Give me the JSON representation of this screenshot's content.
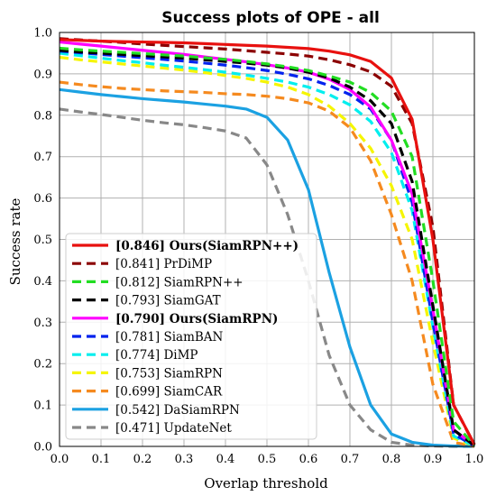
{
  "chart_data": {
    "type": "line",
    "title": "Success plots of OPE - all",
    "xlabel": "Overlap threshold",
    "ylabel": "Success rate",
    "xlim": [
      0,
      1
    ],
    "ylim": [
      0,
      1
    ],
    "xticks": [
      "0.0",
      "0.1",
      "0.2",
      "0.3",
      "0.4",
      "0.5",
      "0.6",
      "0.7",
      "0.8",
      "0.9",
      "1.0"
    ],
    "yticks": [
      "0.0",
      "0.1",
      "0.2",
      "0.3",
      "0.4",
      "0.5",
      "0.6",
      "0.7",
      "0.8",
      "0.9",
      "1.0"
    ],
    "grid": true,
    "legend_position": "lower-left",
    "x": [
      0,
      0.05,
      0.1,
      0.15,
      0.2,
      0.25,
      0.3,
      0.35,
      0.4,
      0.45,
      0.5,
      0.55,
      0.6,
      0.65,
      0.7,
      0.75,
      0.8,
      0.85,
      0.9,
      0.95,
      1.0
    ],
    "series": [
      {
        "name": "[0.846] Ours(SiamRPN++)",
        "bold": true,
        "color": "#e8110f",
        "dash": "solid",
        "values": [
          0.983,
          0.981,
          0.979,
          0.978,
          0.977,
          0.976,
          0.975,
          0.973,
          0.971,
          0.969,
          0.967,
          0.964,
          0.961,
          0.955,
          0.946,
          0.93,
          0.89,
          0.79,
          0.5,
          0.1,
          0.005
        ]
      },
      {
        "name": "[0.841] PrDiMP",
        "bold": false,
        "color": "#8b0000",
        "dash": "dashed",
        "values": [
          0.985,
          0.982,
          0.979,
          0.976,
          0.972,
          0.969,
          0.966,
          0.963,
          0.96,
          0.956,
          0.952,
          0.948,
          0.943,
          0.934,
          0.922,
          0.905,
          0.87,
          0.78,
          0.53,
          0.1,
          0.004
        ]
      },
      {
        "name": "[0.812] SiamRPN++",
        "bold": false,
        "color": "#22dd22",
        "dash": "dashed",
        "values": [
          0.962,
          0.958,
          0.955,
          0.952,
          0.949,
          0.946,
          0.943,
          0.939,
          0.935,
          0.93,
          0.924,
          0.917,
          0.908,
          0.895,
          0.88,
          0.855,
          0.81,
          0.7,
          0.4,
          0.06,
          0.002
        ]
      },
      {
        "name": "[0.793] SiamGAT",
        "bold": false,
        "color": "#000000",
        "dash": "dashed",
        "values": [
          0.957,
          0.953,
          0.95,
          0.947,
          0.944,
          0.941,
          0.938,
          0.934,
          0.93,
          0.926,
          0.921,
          0.914,
          0.904,
          0.89,
          0.868,
          0.835,
          0.78,
          0.64,
          0.34,
          0.04,
          0.002
        ]
      },
      {
        "name": "[0.790] Ours(SiamRPN)",
        "bold": true,
        "color": "#ff00ff",
        "dash": "solid",
        "values": [
          0.977,
          0.972,
          0.967,
          0.962,
          0.957,
          0.952,
          0.947,
          0.941,
          0.935,
          0.929,
          0.922,
          0.914,
          0.904,
          0.887,
          0.862,
          0.82,
          0.74,
          0.61,
          0.33,
          0.04,
          0.002
        ]
      },
      {
        "name": "[0.781] SiamBAN",
        "bold": false,
        "color": "#0022ee",
        "dash": "dashed",
        "values": [
          0.955,
          0.951,
          0.947,
          0.943,
          0.939,
          0.935,
          0.931,
          0.926,
          0.921,
          0.915,
          0.908,
          0.899,
          0.888,
          0.872,
          0.85,
          0.815,
          0.74,
          0.59,
          0.3,
          0.03,
          0.001
        ]
      },
      {
        "name": "[0.774] DiMP",
        "bold": false,
        "color": "#00eeee",
        "dash": "dashed",
        "values": [
          0.95,
          0.944,
          0.938,
          0.932,
          0.927,
          0.921,
          0.916,
          0.91,
          0.904,
          0.897,
          0.889,
          0.88,
          0.868,
          0.85,
          0.825,
          0.785,
          0.71,
          0.57,
          0.29,
          0.025,
          0.001
        ]
      },
      {
        "name": "[0.753] SiamRPN",
        "bold": false,
        "color": "#f5f500",
        "dash": "dashed",
        "values": [
          0.94,
          0.934,
          0.929,
          0.924,
          0.919,
          0.914,
          0.909,
          0.903,
          0.896,
          0.889,
          0.88,
          0.868,
          0.85,
          0.822,
          0.78,
          0.72,
          0.63,
          0.5,
          0.25,
          0.02,
          0.001
        ]
      },
      {
        "name": "[0.699] SiamCAR",
        "bold": false,
        "color": "#f58a1f",
        "dash": "dashed",
        "values": [
          0.88,
          0.874,
          0.869,
          0.865,
          0.862,
          0.859,
          0.857,
          0.855,
          0.852,
          0.85,
          0.846,
          0.84,
          0.83,
          0.81,
          0.77,
          0.69,
          0.56,
          0.4,
          0.15,
          0.01,
          0.0
        ]
      },
      {
        "name": "[0.542] DaSiamRPN",
        "bold": false,
        "color": "#1ba1e2",
        "dash": "solid",
        "values": [
          0.862,
          0.856,
          0.85,
          0.845,
          0.84,
          0.836,
          0.832,
          0.827,
          0.822,
          0.815,
          0.795,
          0.74,
          0.62,
          0.42,
          0.24,
          0.1,
          0.03,
          0.01,
          0.003,
          0.001,
          0.0
        ]
      },
      {
        "name": "[0.471] UpdateNet",
        "bold": false,
        "color": "#888888",
        "dash": "dashed",
        "values": [
          0.815,
          0.808,
          0.802,
          0.795,
          0.788,
          0.782,
          0.777,
          0.77,
          0.762,
          0.745,
          0.68,
          0.56,
          0.4,
          0.22,
          0.1,
          0.04,
          0.01,
          0.003,
          0.001,
          0.0,
          0.0
        ]
      }
    ]
  }
}
